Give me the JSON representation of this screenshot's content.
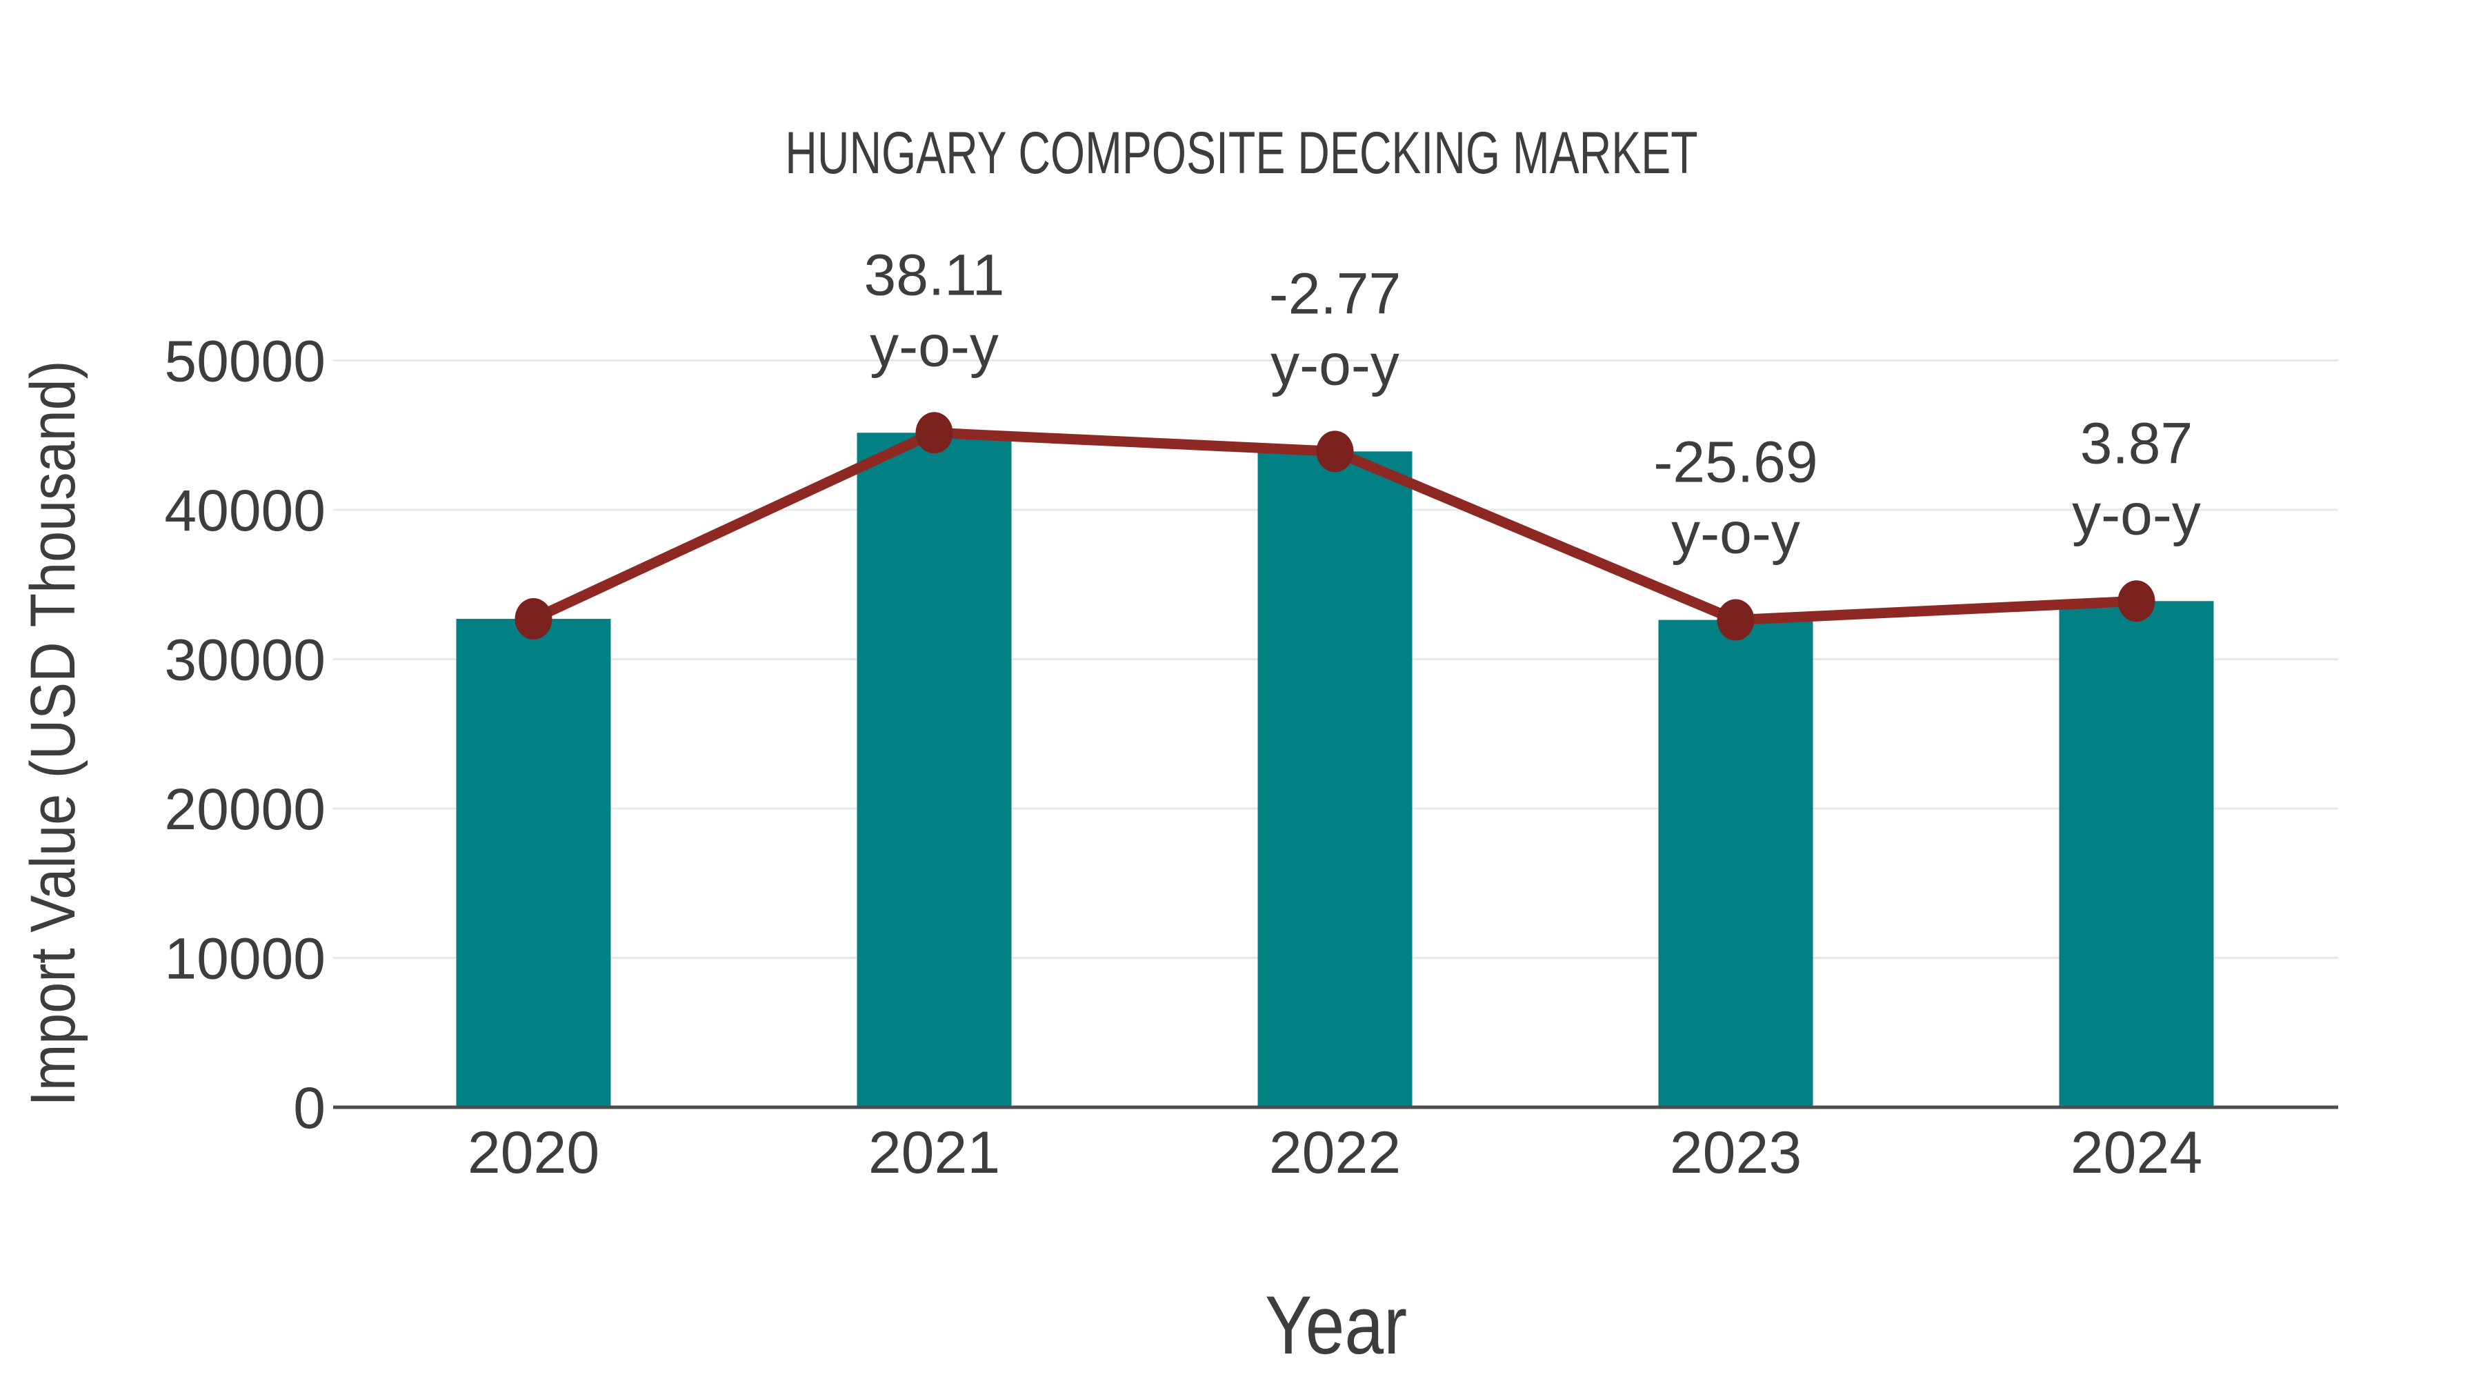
{
  "title": "HUNGARY COMPOSITE DECKING MARKET",
  "colors": {
    "background": "#ffffff",
    "bar": "#038083",
    "line": "#8d2823",
    "marker": "#7b221e",
    "grid": "#e8e8e8",
    "axis": "#4d4d4d",
    "text": "#3d3d3d"
  },
  "chart_data": {
    "type": "bar",
    "title": "HUNGARY COMPOSITE DECKING MARKET",
    "xlabel": "Year",
    "ylabel": "Import Value (USD Thousand)",
    "categories": [
      "2020",
      "2021",
      "2022",
      "2023",
      "2024"
    ],
    "values": [
      32700,
      45160,
      43910,
      32630,
      33890
    ],
    "yticks": [
      0,
      10000,
      20000,
      30000,
      40000,
      50000
    ],
    "ylim": [
      0,
      50000
    ],
    "grid": "horizontal-only",
    "legend": "none",
    "line_overlay": {
      "description": "maroon line with dot markers connecting bar tops, annotated with year-over-year percent change",
      "yoy_percent": [
        null,
        38.11,
        -2.77,
        -25.69,
        3.87
      ]
    },
    "annotations": [
      {
        "category": "2021",
        "lines": [
          "38.11",
          "y-o-y"
        ]
      },
      {
        "category": "2022",
        "lines": [
          "-2.77",
          "y-o-y"
        ]
      },
      {
        "category": "2023",
        "lines": [
          "-25.69",
          "y-o-y"
        ]
      },
      {
        "category": "2024",
        "lines": [
          "3.87",
          "y-o-y"
        ]
      }
    ]
  }
}
